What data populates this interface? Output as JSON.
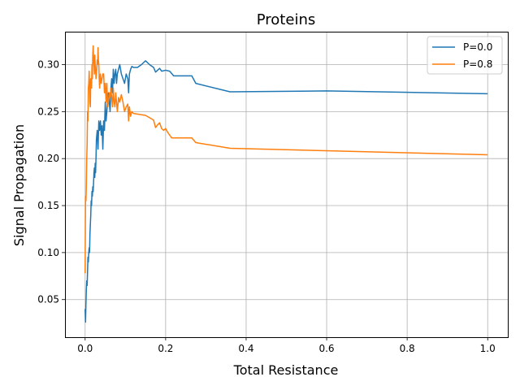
{
  "chart_data": {
    "type": "line",
    "title": "Proteins",
    "xlabel": "Total Resistance",
    "ylabel": "Signal Propagation",
    "xlim": [
      -0.05,
      1.05
    ],
    "ylim": [
      0.01,
      0.335
    ],
    "xticks": [
      0.0,
      0.2,
      0.4,
      0.6,
      0.8,
      1.0
    ],
    "xtick_labels": [
      "0.0",
      "0.2",
      "0.4",
      "0.6",
      "0.8",
      "1.0"
    ],
    "yticks": [
      0.05,
      0.1,
      0.15,
      0.2,
      0.25,
      0.3
    ],
    "ytick_labels": [
      "0.05",
      "0.10",
      "0.15",
      "0.20",
      "0.25",
      "0.30"
    ],
    "grid": true,
    "legend_position": "top-right",
    "series": [
      {
        "name": "P=0.0",
        "color": "#1f77b4",
        "x": [
          0.0,
          0.001,
          0.002,
          0.003,
          0.004,
          0.005,
          0.006,
          0.007,
          0.008,
          0.009,
          0.01,
          0.011,
          0.012,
          0.013,
          0.014,
          0.015,
          0.016,
          0.017,
          0.018,
          0.019,
          0.02,
          0.021,
          0.022,
          0.023,
          0.024,
          0.025,
          0.026,
          0.027,
          0.028,
          0.03,
          0.032,
          0.034,
          0.036,
          0.038,
          0.04,
          0.042,
          0.044,
          0.046,
          0.048,
          0.05,
          0.052,
          0.054,
          0.056,
          0.058,
          0.06,
          0.062,
          0.064,
          0.066,
          0.068,
          0.07,
          0.072,
          0.074,
          0.076,
          0.078,
          0.08,
          0.083,
          0.086,
          0.09,
          0.094,
          0.098,
          0.102,
          0.106,
          0.108,
          0.11,
          0.113,
          0.116,
          0.12,
          0.13,
          0.14,
          0.15,
          0.16,
          0.17,
          0.175,
          0.18,
          0.185,
          0.19,
          0.2,
          0.21,
          0.22,
          0.26,
          0.265,
          0.275,
          0.36,
          0.6,
          1.0
        ],
        "y": [
          0.04,
          0.026,
          0.045,
          0.06,
          0.07,
          0.065,
          0.08,
          0.095,
          0.09,
          0.1,
          0.105,
          0.1,
          0.12,
          0.13,
          0.14,
          0.155,
          0.15,
          0.165,
          0.16,
          0.17,
          0.165,
          0.175,
          0.185,
          0.19,
          0.18,
          0.195,
          0.185,
          0.2,
          0.22,
          0.23,
          0.21,
          0.24,
          0.23,
          0.24,
          0.225,
          0.235,
          0.21,
          0.24,
          0.23,
          0.26,
          0.24,
          0.25,
          0.265,
          0.27,
          0.26,
          0.25,
          0.275,
          0.285,
          0.27,
          0.295,
          0.28,
          0.29,
          0.295,
          0.28,
          0.29,
          0.295,
          0.3,
          0.29,
          0.285,
          0.28,
          0.29,
          0.285,
          0.27,
          0.29,
          0.295,
          0.298,
          0.297,
          0.297,
          0.3,
          0.304,
          0.3,
          0.297,
          0.292,
          0.294,
          0.296,
          0.293,
          0.294,
          0.293,
          0.288,
          0.288,
          0.288,
          0.28,
          0.271,
          0.272,
          0.269
        ]
      },
      {
        "name": "P=0.8",
        "color": "#ff7f0e",
        "x": [
          0.0,
          0.001,
          0.002,
          0.003,
          0.004,
          0.005,
          0.006,
          0.007,
          0.008,
          0.009,
          0.01,
          0.011,
          0.012,
          0.013,
          0.014,
          0.015,
          0.016,
          0.017,
          0.018,
          0.019,
          0.02,
          0.021,
          0.022,
          0.023,
          0.024,
          0.025,
          0.026,
          0.027,
          0.028,
          0.029,
          0.03,
          0.031,
          0.032,
          0.033,
          0.034,
          0.035,
          0.036,
          0.038,
          0.04,
          0.042,
          0.044,
          0.046,
          0.048,
          0.05,
          0.052,
          0.054,
          0.056,
          0.058,
          0.06,
          0.062,
          0.064,
          0.066,
          0.068,
          0.07,
          0.072,
          0.074,
          0.076,
          0.078,
          0.08,
          0.083,
          0.086,
          0.09,
          0.094,
          0.098,
          0.102,
          0.106,
          0.108,
          0.11,
          0.113,
          0.116,
          0.12,
          0.15,
          0.17,
          0.175,
          0.18,
          0.185,
          0.19,
          0.195,
          0.2,
          0.205,
          0.21,
          0.215,
          0.265,
          0.275,
          0.36,
          1.0
        ],
        "y": [
          0.078,
          0.16,
          0.155,
          0.17,
          0.2,
          0.215,
          0.25,
          0.24,
          0.275,
          0.28,
          0.293,
          0.28,
          0.26,
          0.255,
          0.285,
          0.28,
          0.275,
          0.3,
          0.285,
          0.31,
          0.32,
          0.305,
          0.3,
          0.29,
          0.31,
          0.3,
          0.295,
          0.285,
          0.29,
          0.295,
          0.305,
          0.3,
          0.318,
          0.305,
          0.3,
          0.285,
          0.275,
          0.29,
          0.28,
          0.285,
          0.29,
          0.29,
          0.27,
          0.28,
          0.26,
          0.28,
          0.255,
          0.26,
          0.27,
          0.265,
          0.275,
          0.265,
          0.255,
          0.275,
          0.26,
          0.255,
          0.27,
          0.26,
          0.25,
          0.265,
          0.26,
          0.268,
          0.26,
          0.25,
          0.255,
          0.258,
          0.24,
          0.255,
          0.245,
          0.25,
          0.248,
          0.246,
          0.241,
          0.233,
          0.236,
          0.238,
          0.232,
          0.23,
          0.232,
          0.228,
          0.225,
          0.222,
          0.222,
          0.217,
          0.211,
          0.204
        ]
      }
    ]
  }
}
